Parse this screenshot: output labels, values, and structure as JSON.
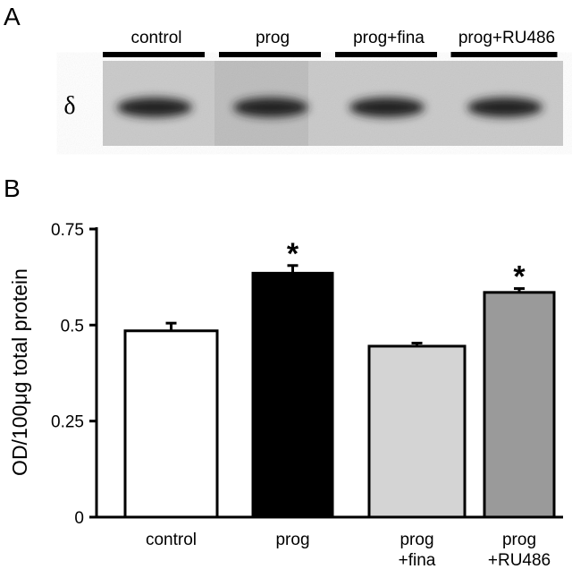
{
  "panel_a": {
    "label": "A",
    "band_label": "δ",
    "lanes": [
      "control",
      "prog",
      "prog+fina",
      "prog+RU486"
    ]
  },
  "chart_data": {
    "type": "bar",
    "panel_label": "B",
    "y_label": "OD/100μg total protein",
    "categories": [
      [
        "control"
      ],
      [
        "prog"
      ],
      [
        "prog",
        "+fina"
      ],
      [
        "prog",
        "+RU486"
      ]
    ],
    "values": [
      0.485,
      0.635,
      0.445,
      0.585
    ],
    "errors": [
      0.02,
      0.02,
      0.008,
      0.01
    ],
    "colors": [
      "#ffffff",
      "#000000",
      "#d4d4d4",
      "#9a9a9a"
    ],
    "annotations": [
      {
        "text": "*",
        "category": 1
      },
      {
        "text": "*",
        "category": 3
      }
    ],
    "ylim": [
      0,
      0.75
    ],
    "yticks": [
      0,
      0.25,
      0.5,
      0.75
    ],
    "grid": false
  }
}
